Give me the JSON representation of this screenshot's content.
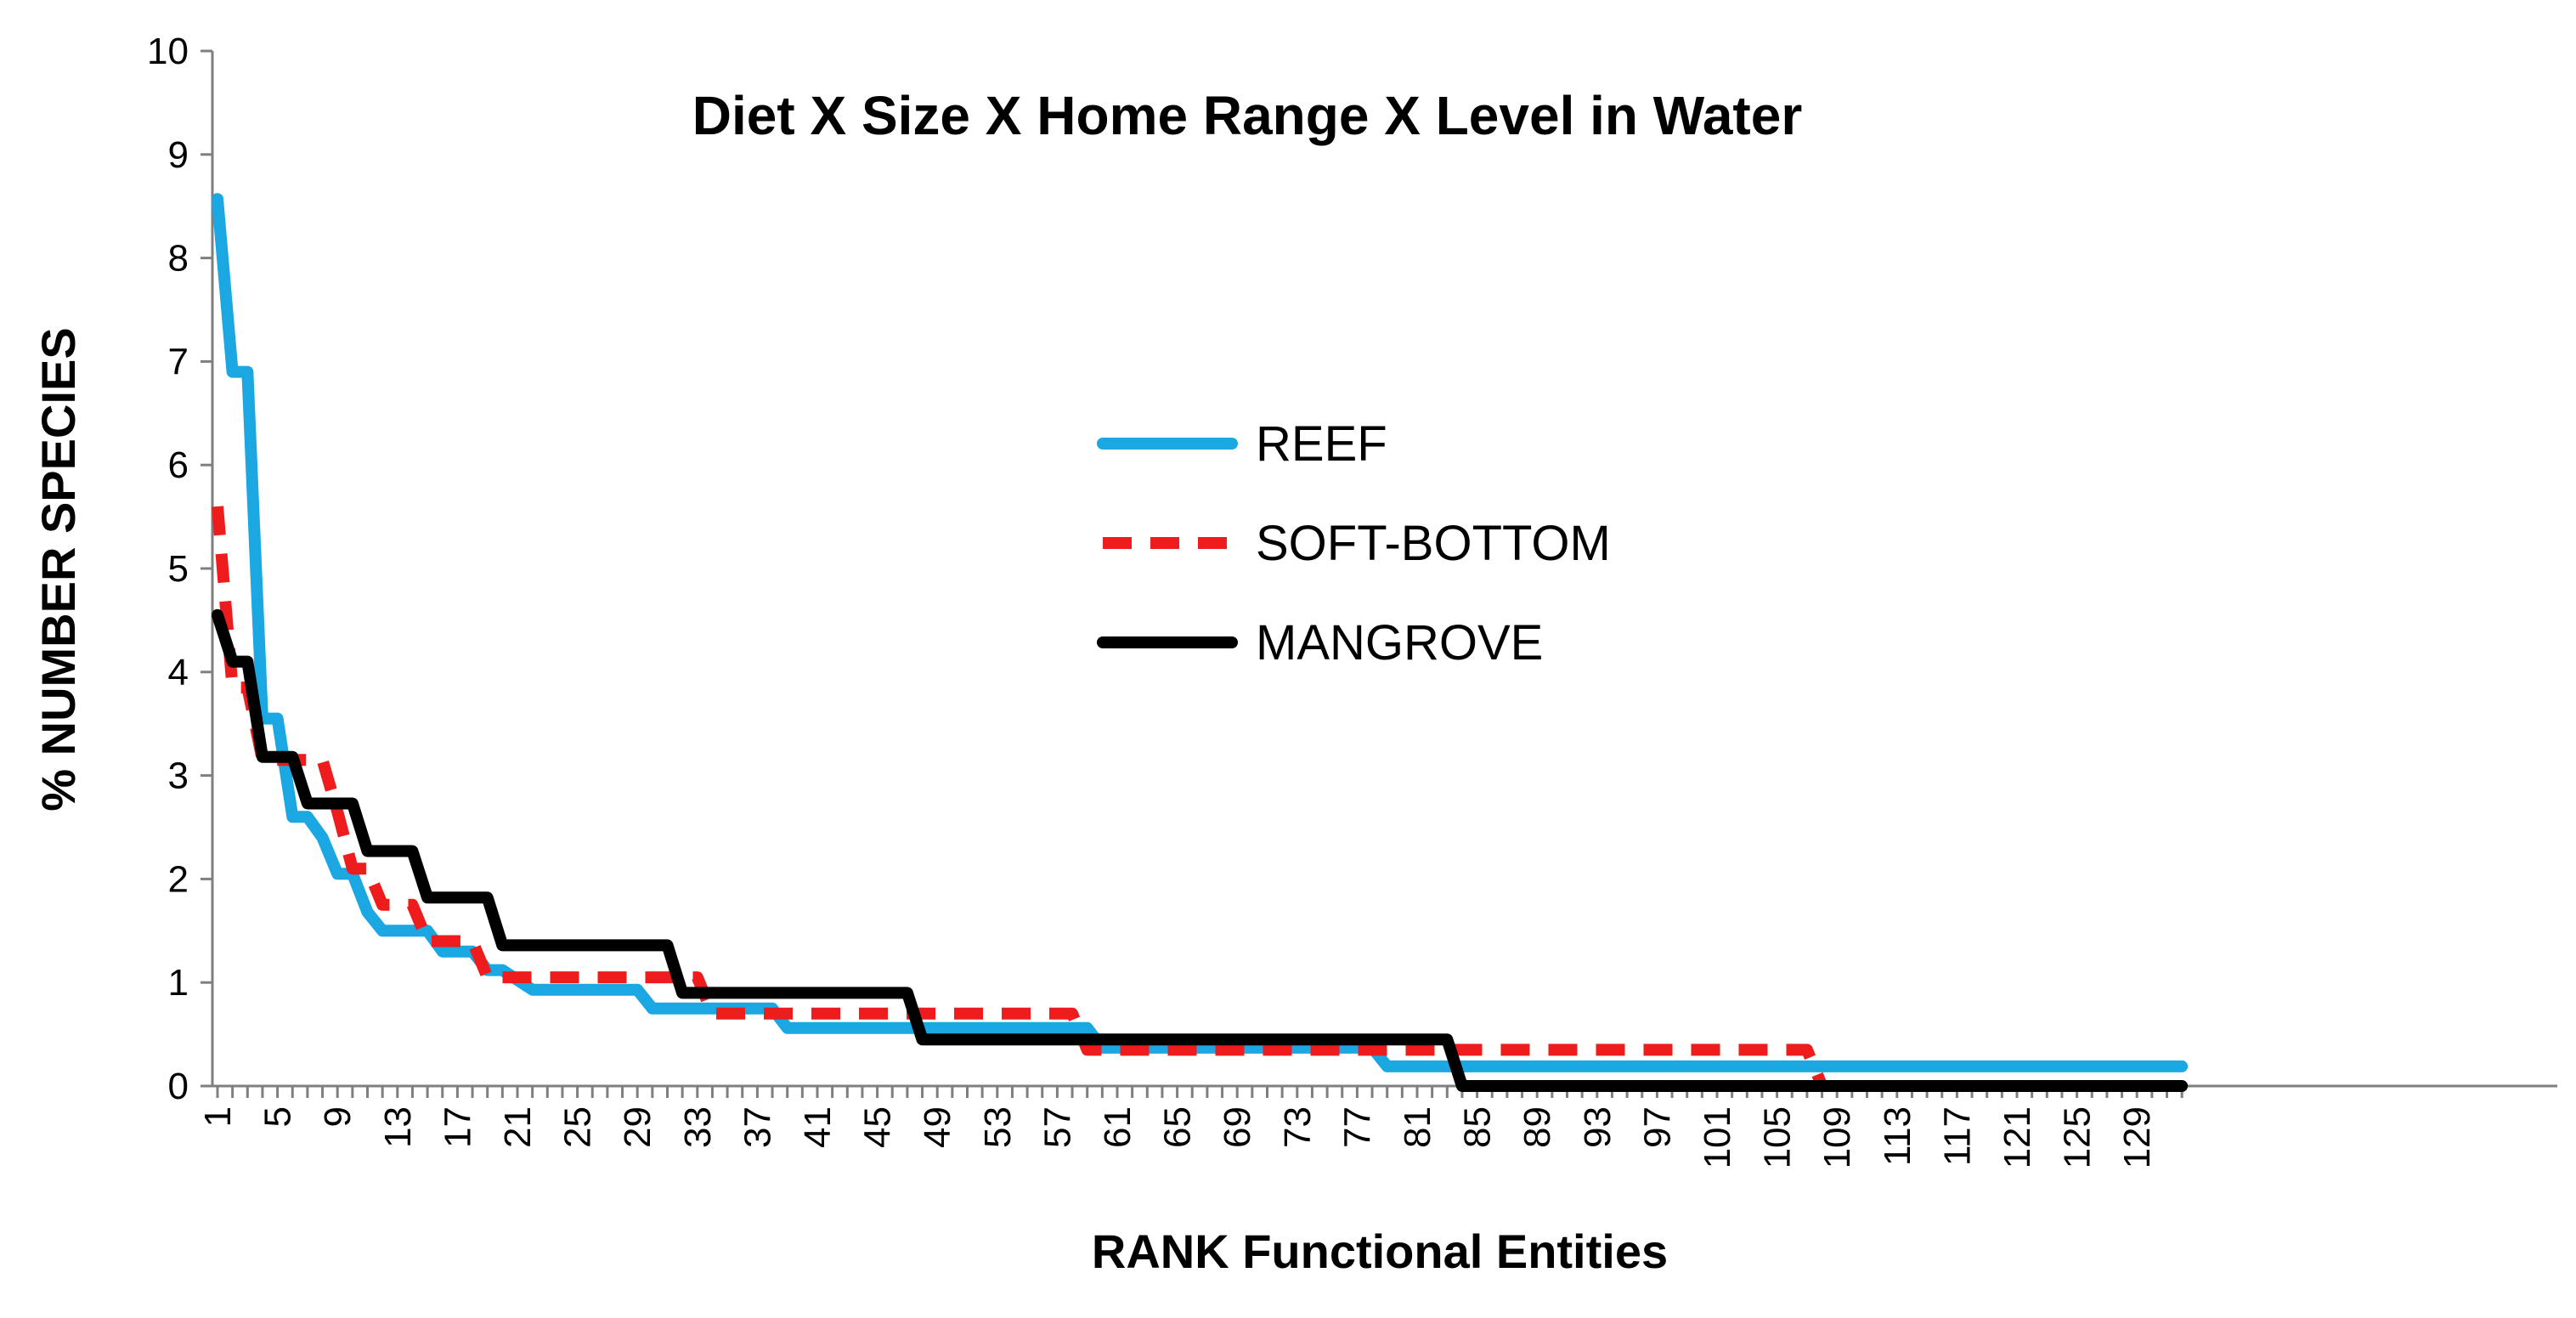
{
  "chart_data": {
    "type": "line",
    "title": "Diet X Size X Home Range X Level in Water",
    "xlabel": "RANK Functional Entities",
    "ylabel": "% NUMBER SPECIES",
    "xlim": [
      1,
      132
    ],
    "ylim": [
      0,
      10
    ],
    "y_ticks": [
      "0",
      "1",
      "2",
      "3",
      "4",
      "5",
      "6",
      "7",
      "8",
      "9",
      "10"
    ],
    "x_tick_labels": [
      "1",
      "5",
      "9",
      "13",
      "17",
      "21",
      "25",
      "29",
      "33",
      "37",
      "41",
      "45",
      "49",
      "53",
      "57",
      "61",
      "65",
      "69",
      "73",
      "77",
      "81",
      "85",
      "89",
      "93",
      "97",
      "101",
      "105",
      "109",
      "113",
      "117",
      "121",
      "125",
      "129"
    ],
    "grid": false,
    "legend_position": "center",
    "series": [
      {
        "name": "REEF",
        "color": "#1aa7e2",
        "style": "solid",
        "points": [
          [
            1,
            8.57
          ],
          [
            2,
            6.9
          ],
          [
            3,
            6.9
          ],
          [
            4,
            3.55
          ],
          [
            5,
            3.55
          ],
          [
            6,
            2.6
          ],
          [
            7,
            2.6
          ],
          [
            8,
            2.4
          ],
          [
            9,
            2.05
          ],
          [
            10,
            2.05
          ],
          [
            11,
            1.68
          ],
          [
            12,
            1.5
          ],
          [
            15,
            1.5
          ],
          [
            16,
            1.3
          ],
          [
            18,
            1.3
          ],
          [
            19,
            1.12
          ],
          [
            20,
            1.12
          ],
          [
            22,
            0.93
          ],
          [
            29,
            0.93
          ],
          [
            30,
            0.75
          ],
          [
            38,
            0.75
          ],
          [
            39,
            0.56
          ],
          [
            59,
            0.56
          ],
          [
            60,
            0.37
          ],
          [
            78,
            0.37
          ],
          [
            79,
            0.19
          ],
          [
            132,
            0.19
          ]
        ]
      },
      {
        "name": "SOFT-BOTTOM",
        "color": "#ee1c1c",
        "style": "dashed",
        "points": [
          [
            1,
            5.6
          ],
          [
            2,
            3.85
          ],
          [
            3,
            3.85
          ],
          [
            4,
            3.15
          ],
          [
            7,
            3.15
          ],
          [
            8,
            3.15
          ],
          [
            9,
            2.65
          ],
          [
            10,
            2.1
          ],
          [
            11,
            2.1
          ],
          [
            12,
            1.75
          ],
          [
            14,
            1.75
          ],
          [
            15,
            1.4
          ],
          [
            18,
            1.4
          ],
          [
            19,
            1.05
          ],
          [
            33,
            1.05
          ],
          [
            34,
            0.7
          ],
          [
            58,
            0.7
          ],
          [
            59,
            0.35
          ],
          [
            107,
            0.35
          ],
          [
            108,
            0
          ],
          [
            132,
            0
          ]
        ]
      },
      {
        "name": "MANGROVE",
        "color": "#000000",
        "style": "solid",
        "points": [
          [
            1,
            4.55
          ],
          [
            2,
            4.1
          ],
          [
            3,
            4.1
          ],
          [
            4,
            3.18
          ],
          [
            6,
            3.18
          ],
          [
            7,
            2.73
          ],
          [
            10,
            2.73
          ],
          [
            11,
            2.27
          ],
          [
            14,
            2.27
          ],
          [
            15,
            1.82
          ],
          [
            19,
            1.82
          ],
          [
            20,
            1.36
          ],
          [
            31,
            1.36
          ],
          [
            32,
            0.9
          ],
          [
            47,
            0.9
          ],
          [
            48,
            0.45
          ],
          [
            83,
            0.45
          ],
          [
            84,
            0
          ],
          [
            132,
            0
          ]
        ]
      }
    ]
  }
}
